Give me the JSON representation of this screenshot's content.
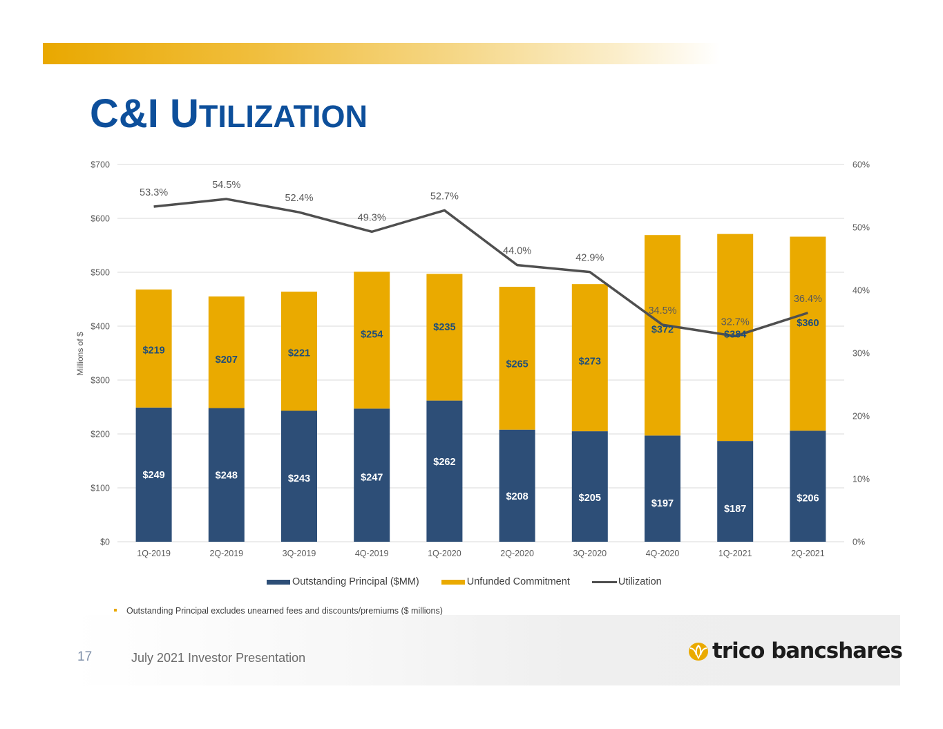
{
  "slide": {
    "title_first": "C&I ",
    "title_cap": "U",
    "title_rest": "TILIZATION",
    "footnote": "Outstanding Principal excludes unearned fees and discounts/premiums ($ millions)",
    "page_number": "17",
    "footer_text": "July 2021 Investor Presentation",
    "logo_text": "trico bancshares",
    "colors": {
      "title": "#0d4f9b",
      "accent_gold": "#e9a800",
      "principal": "#2d4e77",
      "unfunded": "#eaaa00",
      "utilization_line": "#4f4f4f"
    }
  },
  "chart_data": {
    "type": "bar",
    "stacked": true,
    "title": "",
    "xlabel": "",
    "ylabel": "Millions of $",
    "ylim": [
      0,
      700
    ],
    "y_ticks": [
      "$0",
      "$100",
      "$200",
      "$300",
      "$400",
      "$500",
      "$600",
      "$700"
    ],
    "y_tick_values": [
      0,
      100,
      200,
      300,
      400,
      500,
      600,
      700
    ],
    "y2lim": [
      0,
      60
    ],
    "y2_ticks": [
      "0%",
      "10%",
      "20%",
      "30%",
      "40%",
      "50%",
      "60%"
    ],
    "y2_tick_values": [
      0,
      10,
      20,
      30,
      40,
      50,
      60
    ],
    "grid": true,
    "legend_position": "bottom",
    "categories": [
      "1Q-2019",
      "2Q-2019",
      "3Q-2019",
      "4Q-2019",
      "1Q-2020",
      "2Q-2020",
      "3Q-2020",
      "4Q-2020",
      "1Q-2021",
      "2Q-2021"
    ],
    "series": [
      {
        "name": "Outstanding Principal ($MM)",
        "type": "bar",
        "axis": "left",
        "values": [
          249,
          248,
          243,
          247,
          262,
          208,
          205,
          197,
          187,
          206
        ],
        "labels": [
          "$249",
          "$248",
          "$243",
          "$247",
          "$262",
          "$208",
          "$205",
          "$197",
          "$187",
          "$206"
        ]
      },
      {
        "name": "Unfunded Commitment",
        "type": "bar",
        "axis": "left",
        "values": [
          219,
          207,
          221,
          254,
          235,
          265,
          273,
          372,
          384,
          360
        ],
        "labels": [
          "$219",
          "$207",
          "$221",
          "$254",
          "$235",
          "$265",
          "$273",
          "$372",
          "$384",
          "$360"
        ]
      },
      {
        "name": "Utilization",
        "type": "line",
        "axis": "right",
        "values": [
          53.3,
          54.5,
          52.4,
          49.3,
          52.7,
          44.0,
          42.9,
          34.5,
          32.7,
          36.4
        ],
        "labels": [
          "53.3%",
          "54.5%",
          "52.4%",
          "49.3%",
          "52.7%",
          "44.0%",
          "42.9%",
          "34.5%",
          "32.7%",
          "36.4%"
        ]
      }
    ]
  }
}
